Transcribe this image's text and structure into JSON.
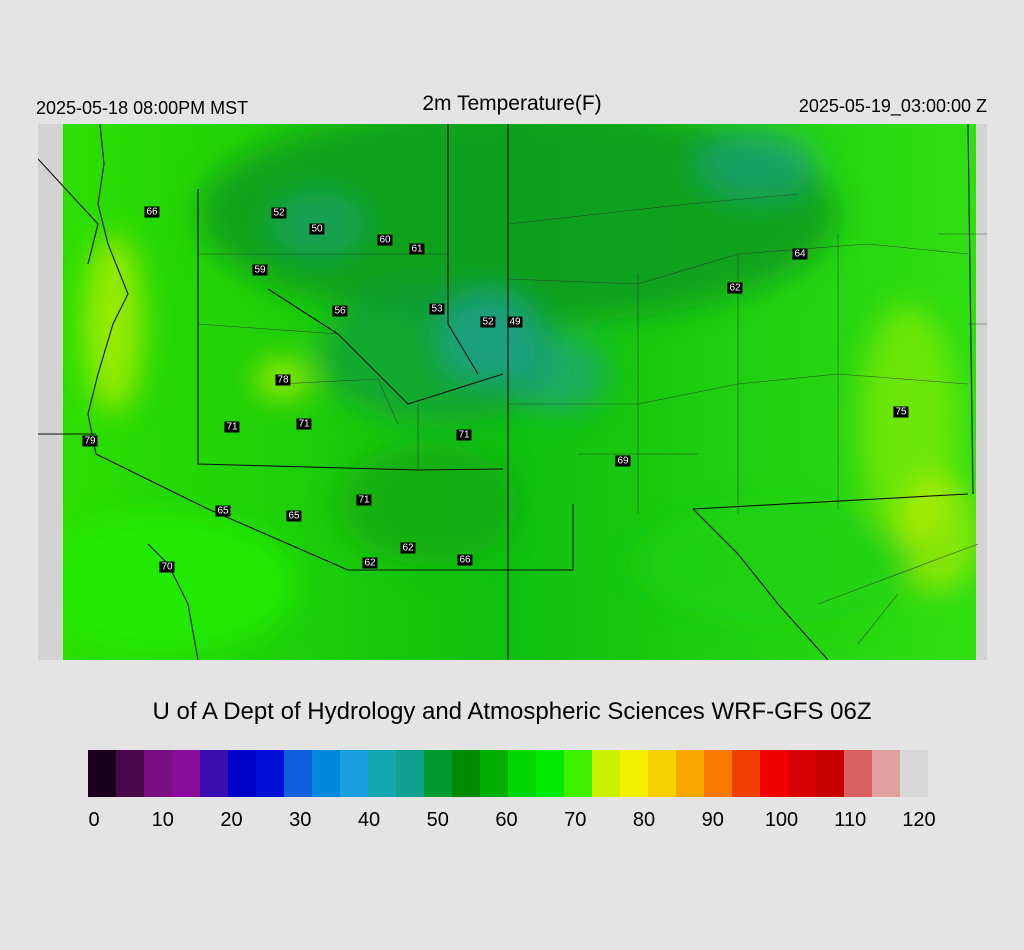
{
  "header": {
    "valid_local": "2025-05-18 08:00PM MST",
    "title": "2m Temperature(F)",
    "valid_utc": "2025-05-19_03:00:00 Z"
  },
  "credit": "U of A Dept of Hydrology and Atmospheric Sciences WRF-GFS 06Z",
  "stations": [
    {
      "value": "66"
    },
    {
      "value": "52"
    },
    {
      "value": "50"
    },
    {
      "value": "60"
    },
    {
      "value": "61"
    },
    {
      "value": "59"
    },
    {
      "value": "56"
    },
    {
      "value": "53"
    },
    {
      "value": "52"
    },
    {
      "value": "49"
    },
    {
      "value": "64"
    },
    {
      "value": "62"
    },
    {
      "value": "78"
    },
    {
      "value": "71"
    },
    {
      "value": "71"
    },
    {
      "value": "71"
    },
    {
      "value": "79"
    },
    {
      "value": "69"
    },
    {
      "value": "75"
    },
    {
      "value": "65"
    },
    {
      "value": "65"
    },
    {
      "value": "71"
    },
    {
      "value": "62"
    },
    {
      "value": "62"
    },
    {
      "value": "66"
    },
    {
      "value": "70"
    }
  ],
  "colorbar": {
    "ticks": [
      "0",
      "10",
      "20",
      "30",
      "40",
      "50",
      "60",
      "70",
      "80",
      "90",
      "100",
      "110",
      "120"
    ],
    "colors": [
      "#1a001a",
      "#4a0a4a",
      "#7a0f86",
      "#8a0c9a",
      "#3a0fb0",
      "#0000c8",
      "#0010d8",
      "#1060e0",
      "#0088dd",
      "#1aa0e0",
      "#15a8b0",
      "#10a090",
      "#009a30",
      "#008a00",
      "#00b000",
      "#00d800",
      "#00ea00",
      "#3cf000",
      "#c8f000",
      "#f0f000",
      "#f8d000",
      "#f8a800",
      "#f87800",
      "#f04000",
      "#f00000",
      "#d80000",
      "#c80000",
      "#d86060",
      "#e0a0a0",
      "#d8d8d8"
    ]
  }
}
